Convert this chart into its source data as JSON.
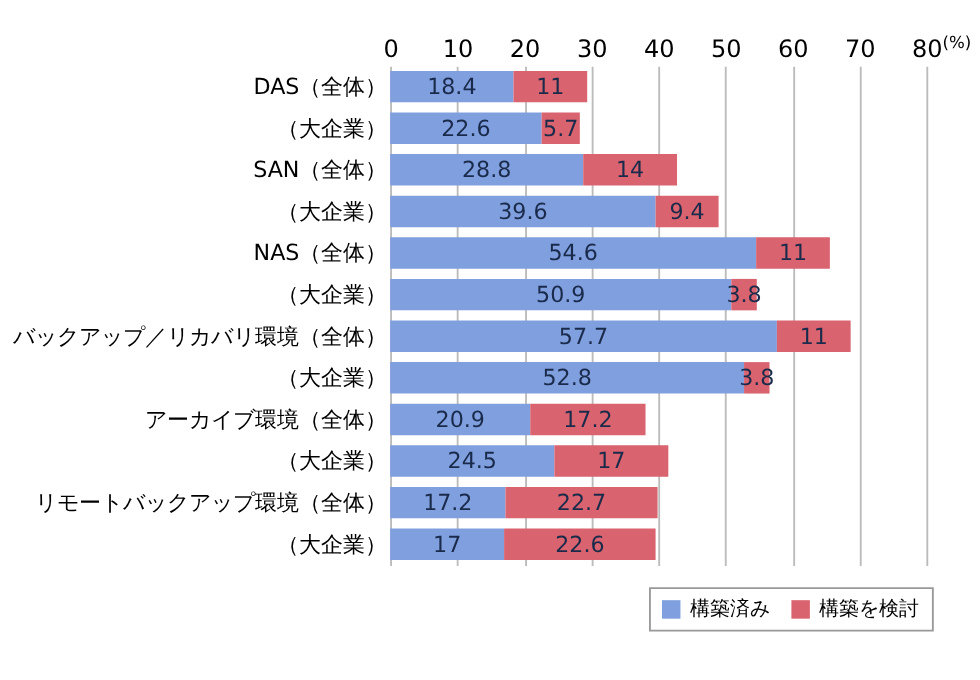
{
  "chart_data": {
    "type": "bar",
    "orientation": "horizontal",
    "stacked": true,
    "xlabel": "(%)",
    "categories": [
      "DAS（全体）",
      "（大企業）",
      "SAN（全体）",
      "（大企業）",
      "NAS（全体）",
      "（大企業）",
      "バックアップ／リカバリ環境（全体）",
      "（大企業）",
      "アーカイブ環境（全体）",
      "（大企業）",
      "リモートバックアップ環境（全体）",
      "（大企業）"
    ],
    "series": [
      {
        "name": "構築済み",
        "color": "#7f9fdf",
        "values": [
          18.4,
          22.6,
          28.8,
          39.6,
          54.6,
          50.9,
          57.7,
          52.8,
          20.9,
          24.5,
          17.2,
          17
        ]
      },
      {
        "name": "構築を検討",
        "color": "#d9636e",
        "values": [
          11,
          5.7,
          14,
          9.4,
          11,
          3.8,
          11,
          3.8,
          17.2,
          17,
          22.7,
          22.6
        ]
      }
    ],
    "xlim": [
      0,
      80
    ],
    "xticks": [
      0,
      10,
      20,
      30,
      40,
      50,
      60,
      70,
      80
    ],
    "grid": "x",
    "legend": "bottom right",
    "data_labels": true
  }
}
